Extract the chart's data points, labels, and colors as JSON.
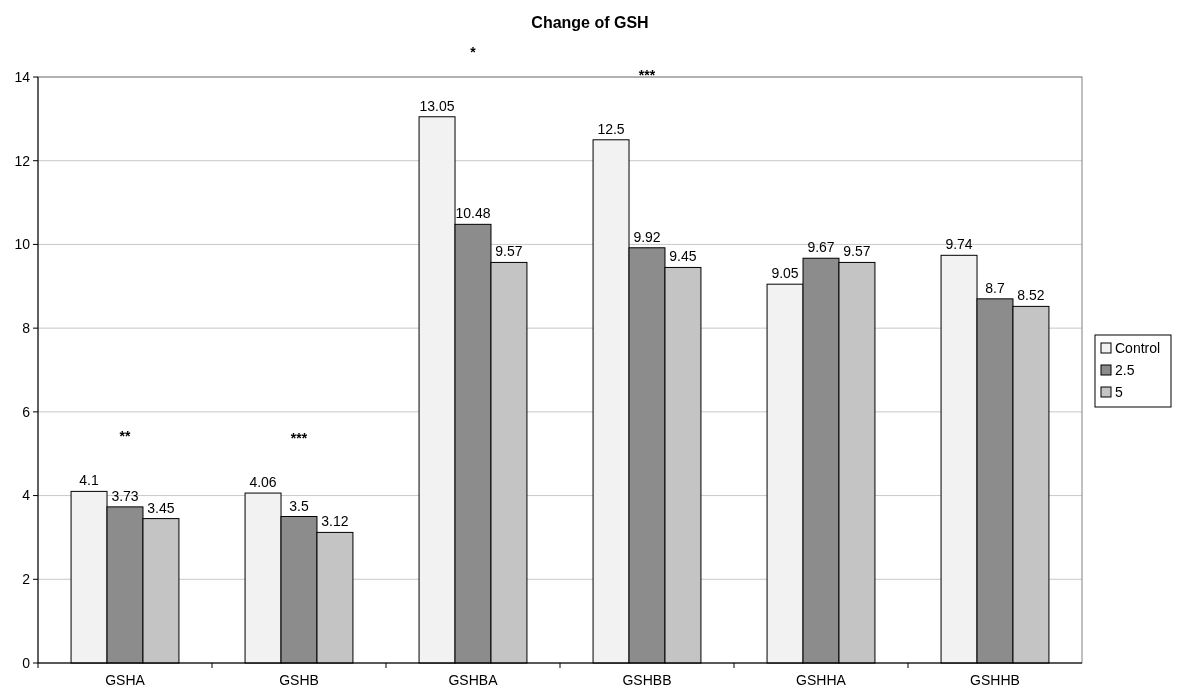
{
  "chart_data": {
    "type": "bar",
    "title": "Change of GSH",
    "categories": [
      "GSHA",
      "GSHB",
      "GSHBA",
      "GSHBB",
      "GSHHA",
      "GSHHB"
    ],
    "series": [
      {
        "name": "Control",
        "color": "#f2f2f2",
        "values": [
          4.1,
          4.06,
          13.05,
          12.5,
          9.05,
          9.74
        ]
      },
      {
        "name": "2.5",
        "color": "#8c8c8c",
        "values": [
          3.73,
          3.5,
          10.48,
          9.92,
          9.67,
          8.7
        ]
      },
      {
        "name": "5",
        "color": "#c4c4c4",
        "values": [
          3.45,
          3.12,
          9.57,
          9.45,
          9.57,
          8.52
        ]
      }
    ],
    "ylim": [
      0,
      14
    ],
    "yticks": [
      0,
      2,
      4,
      6,
      8,
      10,
      12,
      14
    ],
    "grid": "y",
    "legend": "right",
    "data_labels": true,
    "annotations": [
      "**",
      "***",
      "*",
      "***"
    ]
  }
}
